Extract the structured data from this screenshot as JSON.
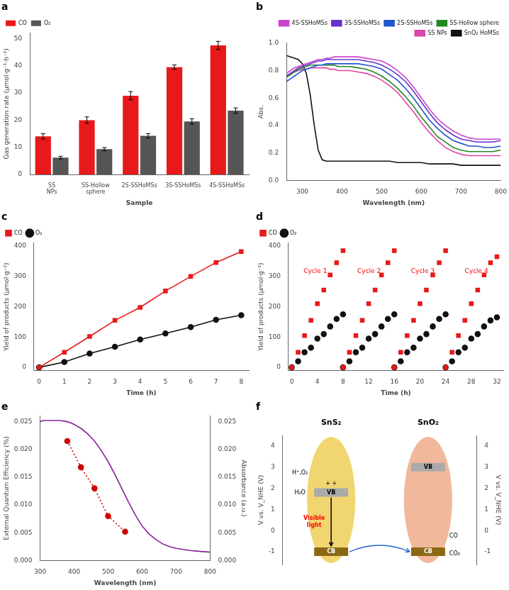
{
  "chart_data": [
    {
      "type": "bar",
      "title": "a",
      "categories": [
        "SS NPs",
        "SS-Hollow sphere",
        "2S-SSHoMSs",
        "3S-SSHoMSs",
        "4S-SSHoMSs"
      ],
      "series": [
        {
          "name": "CO",
          "color": "#e8191a",
          "values": [
            14.0,
            20.0,
            29.0,
            39.5,
            47.5
          ],
          "errors": [
            1.0,
            1.2,
            1.5,
            0.8,
            1.5
          ]
        },
        {
          "name": "O₂",
          "color": "#555555",
          "values": [
            6.2,
            9.3,
            14.2,
            19.5,
            23.5
          ],
          "errors": [
            0.5,
            0.6,
            0.8,
            1.0,
            1.0
          ]
        }
      ],
      "xlabel": "Sample",
      "ylabel": "Gas generation rate (μmol·g⁻¹·h⁻¹)",
      "ylim": [
        0,
        52
      ],
      "yticks": [
        0,
        10,
        20,
        30,
        40,
        50
      ],
      "legend": "upper left",
      "grid": false
    },
    {
      "type": "line",
      "title": "b",
      "x": [
        260,
        270,
        280,
        290,
        300,
        310,
        320,
        330,
        340,
        350,
        360,
        370,
        380,
        390,
        400,
        420,
        440,
        460,
        480,
        500,
        520,
        540,
        560,
        580,
        600,
        620,
        640,
        660,
        680,
        700,
        720,
        740,
        760,
        780,
        800
      ],
      "series": [
        {
          "name": "4S-SSHoMSs",
          "color": "#cc44cc",
          "values": [
            0.78,
            0.8,
            0.82,
            0.83,
            0.84,
            0.85,
            0.86,
            0.87,
            0.88,
            0.88,
            0.89,
            0.89,
            0.9,
            0.9,
            0.9,
            0.9,
            0.9,
            0.89,
            0.88,
            0.87,
            0.84,
            0.8,
            0.75,
            0.68,
            0.6,
            0.52,
            0.45,
            0.4,
            0.36,
            0.33,
            0.31,
            0.3,
            0.3,
            0.3,
            0.3
          ]
        },
        {
          "name": "3S-SSHoMSs",
          "color": "#6633cc",
          "values": [
            0.76,
            0.78,
            0.8,
            0.82,
            0.83,
            0.84,
            0.85,
            0.86,
            0.87,
            0.87,
            0.88,
            0.88,
            0.88,
            0.88,
            0.88,
            0.88,
            0.88,
            0.87,
            0.86,
            0.84,
            0.81,
            0.77,
            0.72,
            0.65,
            0.57,
            0.49,
            0.42,
            0.37,
            0.33,
            0.3,
            0.29,
            0.28,
            0.28,
            0.28,
            0.29
          ]
        },
        {
          "name": "2S-SSHoMSs",
          "color": "#2255cc",
          "values": [
            0.72,
            0.74,
            0.76,
            0.78,
            0.8,
            0.81,
            0.82,
            0.83,
            0.84,
            0.84,
            0.85,
            0.85,
            0.85,
            0.85,
            0.85,
            0.85,
            0.85,
            0.84,
            0.83,
            0.81,
            0.77,
            0.73,
            0.67,
            0.6,
            0.52,
            0.44,
            0.38,
            0.33,
            0.29,
            0.27,
            0.25,
            0.25,
            0.24,
            0.24,
            0.25
          ]
        },
        {
          "name": "SS-Hollow sphere",
          "color": "#228822",
          "values": [
            0.75,
            0.77,
            0.79,
            0.81,
            0.82,
            0.83,
            0.84,
            0.84,
            0.84,
            0.84,
            0.84,
            0.84,
            0.84,
            0.83,
            0.83,
            0.83,
            0.82,
            0.81,
            0.79,
            0.76,
            0.72,
            0.67,
            0.61,
            0.54,
            0.46,
            0.39,
            0.32,
            0.28,
            0.24,
            0.22,
            0.21,
            0.21,
            0.21,
            0.21,
            0.22
          ]
        },
        {
          "name": "SS NPs",
          "color": "#dd44aa",
          "values": [
            0.76,
            0.78,
            0.79,
            0.8,
            0.81,
            0.81,
            0.82,
            0.82,
            0.82,
            0.82,
            0.82,
            0.81,
            0.81,
            0.8,
            0.8,
            0.8,
            0.79,
            0.78,
            0.76,
            0.73,
            0.69,
            0.64,
            0.57,
            0.5,
            0.42,
            0.35,
            0.29,
            0.24,
            0.21,
            0.19,
            0.18,
            0.18,
            0.18,
            0.18,
            0.18
          ]
        },
        {
          "name": "SnO₂ HoMSs",
          "color": "#111111",
          "values": [
            0.91,
            0.9,
            0.89,
            0.88,
            0.85,
            0.78,
            0.62,
            0.4,
            0.22,
            0.15,
            0.14,
            0.14,
            0.14,
            0.14,
            0.14,
            0.14,
            0.14,
            0.14,
            0.14,
            0.14,
            0.14,
            0.13,
            0.13,
            0.13,
            0.13,
            0.12,
            0.12,
            0.12,
            0.12,
            0.11,
            0.11,
            0.11,
            0.11,
            0.11,
            0.11
          ]
        }
      ],
      "xlabel": "Wavelength (nm)",
      "ylabel": "Abs.",
      "xlim": [
        260,
        800
      ],
      "xticks": [
        300,
        400,
        500,
        600,
        700,
        800
      ],
      "ylim": [
        0,
        1
      ],
      "yticks": [
        {
          "value": 0,
          "label": "0.0"
        },
        0.2,
        0.4,
        0.6,
        0.8,
        {
          "value": 1,
          "label": "1.0"
        }
      ],
      "legend": "upper right",
      "grid": false
    },
    {
      "type": "line",
      "title": "c",
      "x": [
        0,
        1,
        2,
        3,
        4,
        5,
        6,
        7,
        8
      ],
      "series": [
        {
          "name": "CO",
          "color": "#e8191a",
          "marker": "square",
          "line_style": "solid",
          "values": [
            0,
            50,
            102,
            155,
            198,
            252,
            300,
            346,
            382
          ]
        },
        {
          "name": "O₂",
          "color": "#111111",
          "marker": "circle",
          "line_style": "solid",
          "values": [
            0,
            18,
            46,
            68,
            92,
            112,
            133,
            157,
            172
          ]
        }
      ],
      "xlabel": "Time (h)",
      "ylabel": "Yield of products (μmol·g⁻¹)",
      "xlim": [
        -0.2,
        8.3
      ],
      "xticks": [
        0,
        1,
        2,
        3,
        4,
        5,
        6,
        7,
        8
      ],
      "ylim": [
        -10,
        410
      ],
      "yticks": [
        0,
        100,
        200,
        300,
        400
      ],
      "legend": "upper left",
      "grid": false
    },
    {
      "type": "scatter",
      "title": "d",
      "series": [
        {
          "name": "CO",
          "color": "#e8191a",
          "marker": "square",
          "x": [
            0,
            1,
            2,
            3,
            4,
            5,
            6,
            7,
            8,
            8,
            9,
            10,
            11,
            12,
            13,
            14,
            15,
            16,
            16,
            17,
            18,
            19,
            20,
            21,
            22,
            23,
            24,
            24,
            25,
            26,
            27,
            28,
            29,
            30,
            31,
            32
          ],
          "values": [
            0,
            50,
            105,
            155,
            210,
            255,
            305,
            345,
            385,
            0,
            50,
            105,
            155,
            210,
            255,
            305,
            345,
            385,
            0,
            50,
            105,
            155,
            210,
            255,
            305,
            345,
            385,
            0,
            50,
            105,
            155,
            210,
            255,
            305,
            345,
            365
          ]
        },
        {
          "name": "O₂",
          "color": "#111111",
          "marker": "circle",
          "x": [
            0,
            1,
            2,
            3,
            4,
            5,
            6,
            7,
            8,
            8,
            9,
            10,
            11,
            12,
            13,
            14,
            15,
            16,
            16,
            17,
            18,
            19,
            20,
            21,
            22,
            23,
            24,
            24,
            25,
            26,
            27,
            28,
            29,
            30,
            31,
            32
          ],
          "values": [
            0,
            20,
            50,
            65,
            95,
            110,
            135,
            160,
            175,
            0,
            20,
            50,
            65,
            95,
            110,
            135,
            160,
            175,
            0,
            20,
            50,
            65,
            95,
            110,
            135,
            160,
            175,
            0,
            20,
            50,
            65,
            95,
            110,
            135,
            155,
            165
          ]
        }
      ],
      "annotations": [
        {
          "text": "Cycle 1",
          "color": "#ff0000"
        },
        {
          "text": "Cycle 2",
          "color": "#ff0000"
        },
        {
          "text": "Cycle 3",
          "color": "#ff0000"
        },
        {
          "text": "Cycle 4",
          "color": "#ff0000"
        }
      ],
      "xlabel": "Time (h)",
      "ylabel": "Yield of products (μmol·g⁻¹)",
      "xlim": [
        -0.5,
        33
      ],
      "xticks": [
        0,
        4,
        8,
        12,
        16,
        20,
        24,
        28,
        32
      ],
      "ylim": [
        -10,
        410
      ],
      "yticks": [
        0,
        100,
        200,
        300,
        400
      ],
      "legend": "upper left",
      "grid": false
    },
    {
      "type": "line",
      "title": "e",
      "series": [
        {
          "color": "#cc0000",
          "marker": "circle",
          "line_style": "dotted",
          "x": [
            380,
            420,
            460,
            500,
            550
          ],
          "values": [
            0.0215,
            0.0168,
            0.013,
            0.008,
            0.0052
          ]
        },
        {
          "color": "#882299",
          "marker": "none",
          "line_style": "solid",
          "axis": "y2",
          "x": [
            300,
            310,
            320,
            330,
            340,
            350,
            360,
            370,
            380,
            390,
            400,
            420,
            440,
            460,
            480,
            500,
            520,
            540,
            560,
            580,
            600,
            620,
            640,
            660,
            680,
            700,
            720,
            740,
            760,
            780,
            800
          ],
          "values": [
            0.025,
            0.0252,
            0.0252,
            0.0252,
            0.0252,
            0.0252,
            0.0252,
            0.0251,
            0.025,
            0.0248,
            0.0245,
            0.0238,
            0.0228,
            0.0215,
            0.0198,
            0.0178,
            0.0155,
            0.013,
            0.0105,
            0.0082,
            0.0062,
            0.0048,
            0.0038,
            0.003,
            0.0025,
            0.0022,
            0.002,
            0.0018,
            0.0017,
            0.0016,
            0.0015
          ]
        }
      ],
      "xlabel": "Wavelength (nm)",
      "ylabel": "External Quantum Efficiency (%)",
      "y2label": "Absorbance (a.u.)",
      "xlim": [
        300,
        800
      ],
      "xticks": [
        300,
        400,
        500,
        600,
        700,
        800
      ],
      "ylim": [
        0,
        0.026
      ],
      "yticks": [
        {
          "value": 0,
          "label": "0.000"
        },
        0.005,
        {
          "value": 0.01,
          "label": "0.010"
        },
        0.015,
        {
          "value": 0.02,
          "label": "0.020"
        },
        0.025
      ],
      "y2lim": [
        0,
        0.026
      ],
      "y2ticks": [
        {
          "value": 0,
          "label": "0.000"
        },
        0.005,
        {
          "value": 0.01,
          "label": "0.010"
        },
        0.015,
        {
          "value": 0.02,
          "label": "0.020"
        },
        0.025
      ],
      "grid": false
    },
    {
      "type": "band",
      "title": "f",
      "categories": [
        "SnS₂",
        "SnO₂"
      ],
      "colors": [
        "#f0d060",
        "#f0b090"
      ],
      "series": [
        {
          "name": "CB",
          "color": "#8B6914",
          "values": [
            -1.0,
            -1.0
          ]
        },
        {
          "name": "VB",
          "color": "#aaaaaa",
          "values": [
            1.8,
            3.0
          ]
        }
      ],
      "annotations": [
        {
          "text": "Visible\nlight",
          "color": "#ff0000"
        },
        {
          "text": "+ +",
          "color": "#000000"
        },
        {
          "text": "CO₂",
          "color": "#000000"
        },
        {
          "text": "CO",
          "color": "#000000"
        },
        {
          "text": "H₂O",
          "color": "#000000"
        },
        {
          "text": "H⁺,O₂",
          "color": "#000000"
        }
      ],
      "ylabel": "V vs. V_NHE (V)",
      "y2label": "V vs. V_NHE (V)",
      "ylim": [
        -1.6,
        4.5
      ],
      "yticks": [
        -1,
        0,
        1,
        2,
        3,
        4
      ],
      "y2lim": [
        -1.6,
        4.5
      ],
      "y2ticks": [
        -1,
        0,
        1,
        2,
        3,
        4
      ],
      "grid": false
    }
  ]
}
